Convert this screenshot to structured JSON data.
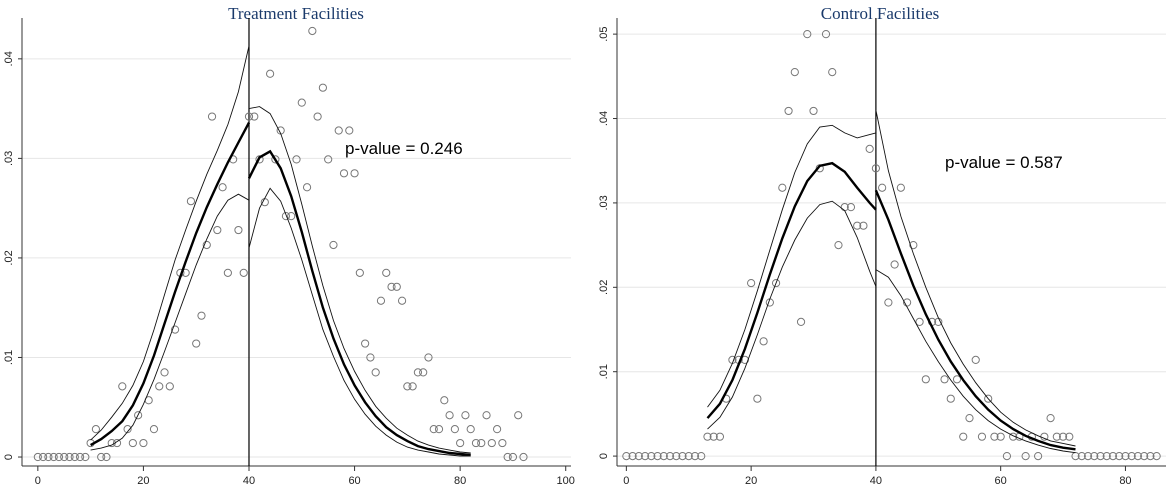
{
  "chart_data": [
    {
      "type": "scatter",
      "title": "Treatment Facilities",
      "annotation": "p-value = 0.246",
      "xlim": [
        -3,
        101
      ],
      "ylim": [
        -0.0005,
        0.0435
      ],
      "x_ticks": [
        0,
        20,
        40,
        60,
        80,
        100
      ],
      "x_tick_labels": [
        "0",
        "20",
        "40",
        "60",
        "80",
        "100"
      ],
      "y_ticks": [
        0,
        0.01,
        0.02,
        0.03,
        0.04
      ],
      "y_tick_labels": [
        "0",
        ".01",
        ".02",
        ".03",
        ".04"
      ],
      "cutoff": 40,
      "grid": true,
      "series": [
        {
          "kind": "points",
          "x": [
            0,
            1,
            2,
            3,
            4,
            5,
            6,
            7,
            8,
            9,
            10,
            11,
            12,
            13,
            14,
            15,
            16,
            17,
            18,
            19,
            20,
            21,
            22,
            23,
            24,
            25,
            26,
            27,
            28,
            29,
            30,
            31,
            32,
            33,
            34,
            35,
            36,
            37,
            38,
            39,
            40,
            41,
            42,
            43,
            44,
            45,
            46,
            47,
            48,
            49,
            50,
            51,
            52,
            53,
            54,
            55,
            56,
            57,
            58,
            59,
            60,
            61,
            62,
            63,
            64,
            65,
            66,
            67,
            68,
            69,
            70,
            71,
            72,
            73,
            74,
            75,
            76,
            77,
            78,
            79,
            80,
            81,
            82,
            83,
            84,
            85,
            86,
            87,
            88,
            89,
            90,
            91,
            92
          ],
          "y": [
            0,
            0,
            0,
            0,
            0,
            0,
            0,
            0,
            0,
            0,
            0.0014,
            0.0028,
            0,
            0,
            0.0014,
            0.0014,
            0.0071,
            0.0028,
            0.0014,
            0.0042,
            0.0014,
            0.0057,
            0.0028,
            0.0071,
            0.0085,
            0.0071,
            0.0128,
            0.0185,
            0.0185,
            0.0257,
            0.0114,
            0.0142,
            0.0213,
            0.0342,
            0.0228,
            0.0271,
            0.0185,
            0.0299,
            0.0228,
            0.0185,
            0.0342,
            0.0342,
            0.0299,
            0.0256,
            0.0385,
            0.0299,
            0.0328,
            0.0242,
            0.0242,
            0.0299,
            0.0356,
            0.0271,
            0.0428,
            0.0342,
            0.0371,
            0.0299,
            0.0213,
            0.0328,
            0.0285,
            0.0328,
            0.0285,
            0.0185,
            0.0114,
            0.01,
            0.0085,
            0.0157,
            0.0185,
            0.0171,
            0.0171,
            0.0157,
            0.0071,
            0.0071,
            0.0085,
            0.0085,
            0.01,
            0.0028,
            0.0028,
            0.0057,
            0.0042,
            0.0028,
            0.0014,
            0.0042,
            0.0028,
            0.0014,
            0.0014,
            0.0042,
            0.0014,
            0.0028,
            0.0014,
            0,
            0,
            0.0042,
            0
          ]
        },
        {
          "kind": "fit-left",
          "x": [
            10,
            12,
            14,
            16,
            18,
            20,
            22,
            24,
            26,
            28,
            30,
            32,
            34,
            36,
            38,
            40
          ],
          "y": [
            0.0012,
            0.0018,
            0.0026,
            0.0036,
            0.0052,
            0.0074,
            0.0102,
            0.0134,
            0.0166,
            0.0196,
            0.0225,
            0.0251,
            0.0274,
            0.0296,
            0.0316,
            0.0336
          ]
        },
        {
          "kind": "ci-left-upper",
          "x": [
            10,
            12,
            14,
            16,
            18,
            20,
            22,
            24,
            26,
            28,
            30,
            32,
            34,
            36,
            38,
            40
          ],
          "y": [
            0.0017,
            0.0027,
            0.004,
            0.0054,
            0.0072,
            0.0096,
            0.0128,
            0.0163,
            0.0198,
            0.0228,
            0.0257,
            0.0284,
            0.0308,
            0.0334,
            0.0367,
            0.0413
          ]
        },
        {
          "kind": "ci-left-lower",
          "x": [
            10,
            12,
            14,
            16,
            18,
            20,
            22,
            24,
            26,
            28,
            30,
            32,
            34,
            36,
            38,
            40
          ],
          "y": [
            0.0007,
            0.0009,
            0.0012,
            0.0019,
            0.0032,
            0.0053,
            0.0078,
            0.0106,
            0.0135,
            0.0164,
            0.0193,
            0.0219,
            0.0242,
            0.0258,
            0.0264,
            0.0258
          ]
        },
        {
          "kind": "fit-right",
          "x": [
            40,
            42,
            44,
            46,
            48,
            50,
            52,
            54,
            56,
            58,
            60,
            62,
            64,
            66,
            68,
            70,
            72,
            74,
            76,
            78,
            80,
            82
          ],
          "y": [
            0.028,
            0.0301,
            0.0307,
            0.029,
            0.0262,
            0.0226,
            0.0187,
            0.015,
            0.0119,
            0.0093,
            0.0072,
            0.0055,
            0.0041,
            0.003,
            0.0022,
            0.0016,
            0.0011,
            0.0008,
            0.0006,
            0.0004,
            0.0003,
            0.0002
          ]
        },
        {
          "kind": "ci-right-upper",
          "x": [
            40,
            42,
            44,
            46,
            48,
            50,
            52,
            54,
            56,
            58,
            60,
            62,
            64,
            66,
            68,
            70,
            72,
            74,
            76,
            78,
            80,
            82
          ],
          "y": [
            0.035,
            0.0352,
            0.0345,
            0.0325,
            0.0294,
            0.0254,
            0.0212,
            0.0172,
            0.0137,
            0.0109,
            0.0086,
            0.0067,
            0.0051,
            0.0039,
            0.0029,
            0.0022,
            0.0016,
            0.0012,
            0.0009,
            0.0007,
            0.0005,
            0.0004
          ]
        },
        {
          "kind": "ci-right-lower",
          "x": [
            40,
            42,
            44,
            46,
            48,
            50,
            52,
            54,
            56,
            58,
            60,
            62,
            64,
            66,
            68,
            70,
            72,
            74,
            76,
            78,
            80,
            82
          ],
          "y": [
            0.021,
            0.025,
            0.027,
            0.0257,
            0.023,
            0.0198,
            0.0163,
            0.0128,
            0.0101,
            0.0077,
            0.0058,
            0.0043,
            0.0031,
            0.0022,
            0.0015,
            0.001,
            0.0007,
            0.0005,
            0.0003,
            0.0002,
            0.0001,
            0.0001
          ]
        }
      ]
    },
    {
      "type": "scatter",
      "title": "Control Facilities",
      "annotation": "p-value = 0.587",
      "xlim": [
        -1.5,
        86.5
      ],
      "ylim": [
        -0.0007,
        0.0512
      ],
      "x_ticks": [
        0,
        20,
        40,
        60,
        80
      ],
      "x_tick_labels": [
        "0",
        "20",
        "40",
        "60",
        "80"
      ],
      "y_ticks": [
        0,
        0.01,
        0.02,
        0.03,
        0.04,
        0.05
      ],
      "y_tick_labels": [
        "0",
        ".01",
        ".02",
        ".03",
        ".04",
        ".05"
      ],
      "cutoff": 40,
      "grid": true,
      "series": [
        {
          "kind": "points",
          "x": [
            0,
            1,
            2,
            3,
            4,
            5,
            6,
            7,
            8,
            9,
            10,
            11,
            12,
            13,
            14,
            15,
            16,
            17,
            18,
            19,
            20,
            21,
            22,
            23,
            24,
            25,
            26,
            27,
            28,
            29,
            30,
            31,
            32,
            33,
            34,
            35,
            36,
            37,
            38,
            39,
            40,
            41,
            42,
            43,
            44,
            45,
            46,
            47,
            48,
            49,
            50,
            51,
            52,
            53,
            54,
            55,
            56,
            57,
            58,
            59,
            60,
            61,
            62,
            63,
            64,
            65,
            66,
            67,
            68,
            69,
            70,
            71,
            72,
            73,
            74,
            75,
            76,
            77,
            78,
            79,
            80,
            81,
            82,
            83,
            84,
            85
          ],
          "y": [
            0,
            0,
            0,
            0,
            0,
            0,
            0,
            0,
            0,
            0,
            0,
            0,
            0,
            0.0023,
            0.0023,
            0.0023,
            0.0068,
            0.0114,
            0.0114,
            0.0114,
            0.0205,
            0.0068,
            0.0136,
            0.0182,
            0.0205,
            0.0318,
            0.0409,
            0.0455,
            0.0159,
            0.05,
            0.0409,
            0.0341,
            0.05,
            0.0455,
            0.025,
            0.0295,
            0.0295,
            0.0273,
            0.0273,
            0.0364,
            0.0341,
            0.0318,
            0.0182,
            0.0227,
            0.0318,
            0.0182,
            0.025,
            0.0159,
            0.0091,
            0.0159,
            0.0159,
            0.0091,
            0.0068,
            0.0091,
            0.0023,
            0.0045,
            0.0114,
            0.0023,
            0.0068,
            0.0023,
            0.0023,
            0,
            0.0023,
            0.0023,
            0,
            0.0023,
            0,
            0.0023,
            0.0045,
            0.0023,
            0.0023,
            0.0023,
            0,
            0,
            0,
            0,
            0,
            0,
            0,
            0,
            0,
            0,
            0,
            0,
            0,
            0
          ]
        },
        {
          "kind": "fit-left",
          "x": [
            13,
            15,
            17,
            19,
            21,
            23,
            25,
            27,
            29,
            31,
            33,
            35,
            37,
            39,
            40
          ],
          "y": [
            0.0045,
            0.0062,
            0.009,
            0.0127,
            0.017,
            0.0215,
            0.0258,
            0.0296,
            0.0326,
            0.0344,
            0.0347,
            0.0337,
            0.0318,
            0.03,
            0.0292
          ]
        },
        {
          "kind": "ci-left-upper",
          "x": [
            13,
            15,
            17,
            19,
            21,
            23,
            25,
            27,
            29,
            31,
            33,
            35,
            37,
            39,
            40
          ],
          "y": [
            0.0058,
            0.0078,
            0.011,
            0.015,
            0.0196,
            0.0244,
            0.0292,
            0.0336,
            0.037,
            0.039,
            0.0392,
            0.0383,
            0.0377,
            0.0381,
            0.0383
          ]
        },
        {
          "kind": "ci-left-lower",
          "x": [
            13,
            15,
            17,
            19,
            21,
            23,
            25,
            27,
            29,
            31,
            33,
            35,
            37,
            39,
            40
          ],
          "y": [
            0.0032,
            0.0046,
            0.007,
            0.0104,
            0.0144,
            0.0186,
            0.0224,
            0.0256,
            0.0282,
            0.0298,
            0.0302,
            0.0291,
            0.0259,
            0.0219,
            0.0201
          ]
        },
        {
          "kind": "fit-right",
          "x": [
            40,
            42,
            44,
            46,
            48,
            50,
            52,
            54,
            56,
            58,
            60,
            62,
            64,
            66,
            68,
            70,
            72
          ],
          "y": [
            0.0315,
            0.028,
            0.024,
            0.0202,
            0.0168,
            0.0138,
            0.0112,
            0.009,
            0.0071,
            0.0055,
            0.0042,
            0.0032,
            0.0024,
            0.0018,
            0.0013,
            0.001,
            0.0008
          ]
        },
        {
          "kind": "ci-right-upper",
          "x": [
            40,
            42,
            44,
            46,
            48,
            50,
            52,
            54,
            56,
            58,
            60,
            62,
            64,
            66,
            68,
            70,
            72
          ],
          "y": [
            0.041,
            0.0338,
            0.0284,
            0.024,
            0.02,
            0.0164,
            0.0134,
            0.0109,
            0.0087,
            0.0068,
            0.0052,
            0.004,
            0.0031,
            0.0024,
            0.0018,
            0.0015,
            0.0012
          ]
        },
        {
          "kind": "ci-right-lower",
          "x": [
            40,
            42,
            44,
            46,
            48,
            50,
            52,
            54,
            56,
            58,
            60,
            62,
            64,
            66,
            68,
            70,
            72
          ],
          "y": [
            0.0221,
            0.0212,
            0.019,
            0.0163,
            0.0136,
            0.0112,
            0.009,
            0.0071,
            0.0055,
            0.0042,
            0.0032,
            0.0024,
            0.0018,
            0.0013,
            0.0009,
            0.0006,
            0.0004
          ]
        }
      ]
    }
  ]
}
